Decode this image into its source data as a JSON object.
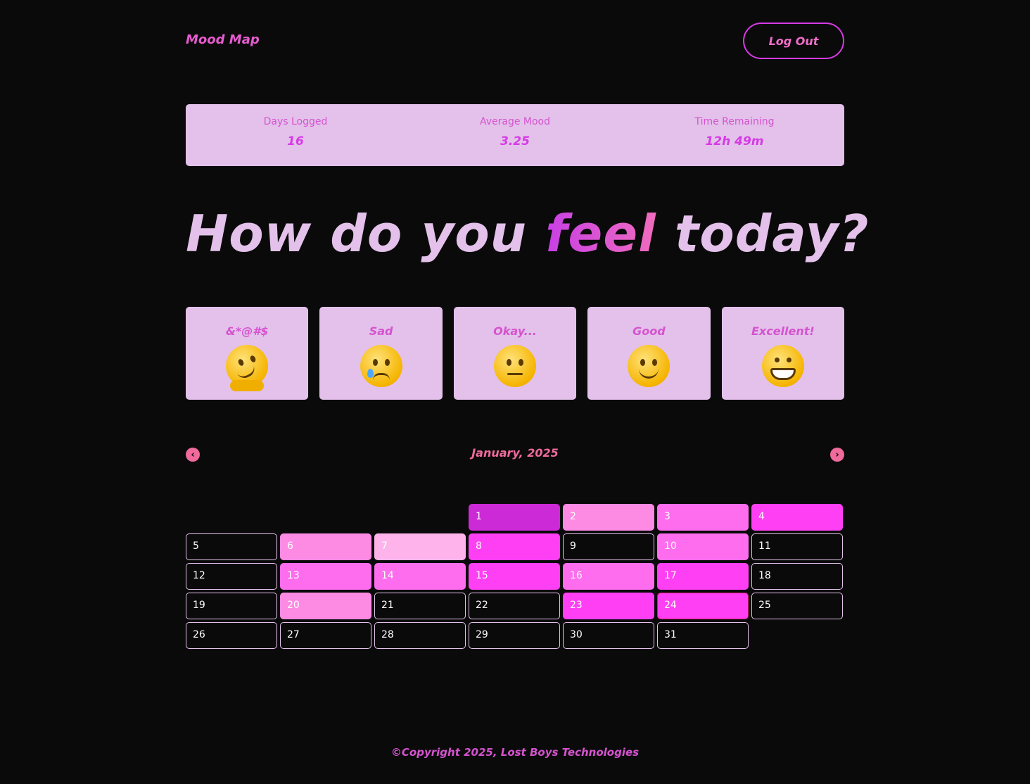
{
  "header": {
    "logo": "Mood Map",
    "logout_label": "Log Out"
  },
  "stats": [
    {
      "label": "Days Logged",
      "value": "16"
    },
    {
      "label": "Average Mood",
      "value": "3.25"
    },
    {
      "label": "Time Remaining",
      "value": "12h 49m"
    }
  ],
  "hero": {
    "before": "How do you ",
    "accent": "feel",
    "after": " today?"
  },
  "moods": [
    {
      "label": "&*@#$",
      "icon": "melting-face-icon"
    },
    {
      "label": "Sad",
      "icon": "crying-face-icon"
    },
    {
      "label": "Okay...",
      "icon": "neutral-face-icon"
    },
    {
      "label": "Good",
      "icon": "smiling-face-icon"
    },
    {
      "label": "Excellent!",
      "icon": "grinning-face-icon"
    }
  ],
  "calendar": {
    "month_label": "January, 2025",
    "prev_icon": "chevron-left-icon",
    "next_icon": "chevron-right-icon",
    "leading_blanks": 3,
    "today": 24,
    "days": [
      {
        "day": "1",
        "color": "#cc2ad6"
      },
      {
        "day": "2",
        "color": "#fd8ae3"
      },
      {
        "day": "3",
        "color": "#fd6ded"
      },
      {
        "day": "4",
        "color": "#ff3ff4"
      },
      {
        "day": "5",
        "color": ""
      },
      {
        "day": "6",
        "color": "#fd8ae3"
      },
      {
        "day": "7",
        "color": "#feb4ea"
      },
      {
        "day": "8",
        "color": "#ff3ff4"
      },
      {
        "day": "9",
        "color": ""
      },
      {
        "day": "10",
        "color": "#fd6ded"
      },
      {
        "day": "11",
        "color": ""
      },
      {
        "day": "12",
        "color": ""
      },
      {
        "day": "13",
        "color": "#fd6ded"
      },
      {
        "day": "14",
        "color": "#fd6ded"
      },
      {
        "day": "15",
        "color": "#ff3ff4"
      },
      {
        "day": "16",
        "color": "#fd6ded"
      },
      {
        "day": "17",
        "color": "#ff3ff4"
      },
      {
        "day": "18",
        "color": ""
      },
      {
        "day": "19",
        "color": ""
      },
      {
        "day": "20",
        "color": "#fd8ae3"
      },
      {
        "day": "21",
        "color": ""
      },
      {
        "day": "22",
        "color": ""
      },
      {
        "day": "23",
        "color": "#ff3ff4"
      },
      {
        "day": "24",
        "color": "#ff3ff4"
      },
      {
        "day": "25",
        "color": ""
      },
      {
        "day": "26",
        "color": ""
      },
      {
        "day": "27",
        "color": ""
      },
      {
        "day": "28",
        "color": ""
      },
      {
        "day": "29",
        "color": ""
      },
      {
        "day": "30",
        "color": ""
      },
      {
        "day": "31",
        "color": ""
      }
    ]
  },
  "footer": {
    "text": "©Copyright 2025, Lost Boys Technologies"
  },
  "colors": {
    "background": "#0a0a0a",
    "card": "#e3c1ea",
    "accent": "#d63ae6",
    "pink": "#f06a9c"
  }
}
